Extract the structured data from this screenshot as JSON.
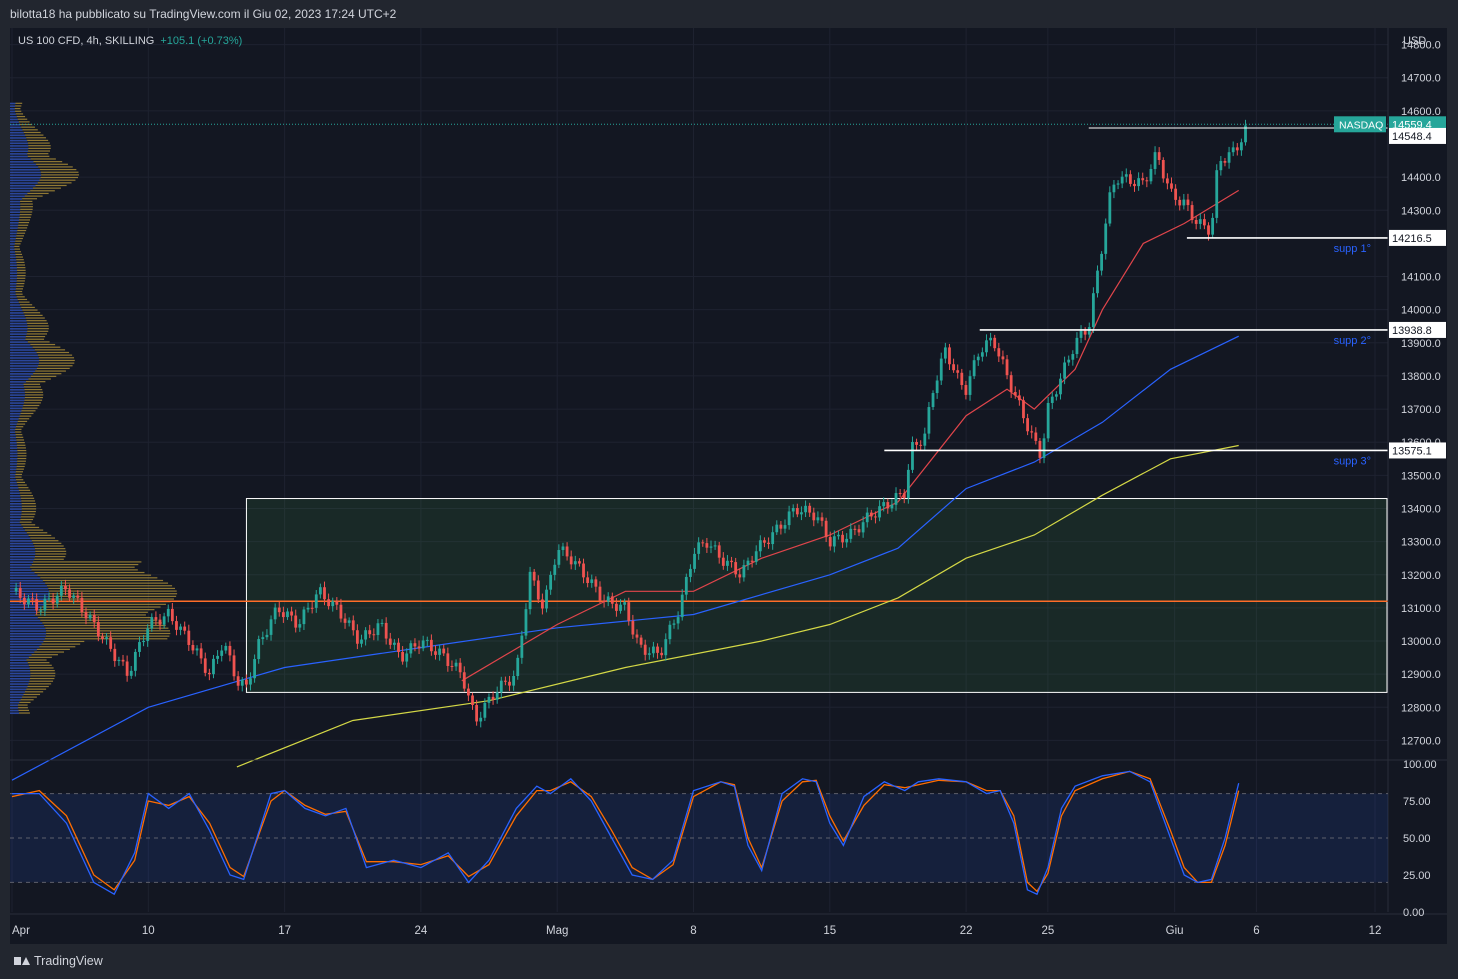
{
  "header": {
    "publish_line": "bilotta18 ha pubblicato su TradingView.com il Giu 02, 2023 17:24 UTC+2"
  },
  "legend": {
    "symbol": "US 100 CFD, 4h, SKILLING",
    "change": "+105.1 (+0.73%)"
  },
  "footer": {
    "brand": "TradingView"
  },
  "colors": {
    "up": "#26a69a",
    "down": "#ef5350",
    "ema_fast": "#e0454b",
    "ema_mid": "#2962ff",
    "ema_slow": "#d4d846",
    "pivot": "#ff6d28",
    "stoch_k": "#2962ff",
    "stoch_d": "#ff6d00"
  },
  "chart_data": {
    "type": "candlestick",
    "currency": "USD",
    "ylim": [
      12650,
      14850
    ],
    "y_ticks": [
      "14800.0",
      "14700.0",
      "14600.0",
      "14400.0",
      "14300.0",
      "14100.0",
      "14000.0",
      "13900.0",
      "13800.0",
      "13700.0",
      "13600.0",
      "13500.0",
      "13400.0",
      "13300.0",
      "13200.0",
      "13100.0",
      "13000.0",
      "12900.0",
      "12800.0",
      "12700.0"
    ],
    "x_ticks": [
      {
        "label": "Apr",
        "pos": 0
      },
      {
        "label": "10",
        "pos": 0.1
      },
      {
        "label": "17",
        "pos": 0.2
      },
      {
        "label": "24",
        "pos": 0.3
      },
      {
        "label": "Mag",
        "pos": 0.4
      },
      {
        "label": "8",
        "pos": 0.5
      },
      {
        "label": "15",
        "pos": 0.6
      },
      {
        "label": "22",
        "pos": 0.7
      },
      {
        "label": "25",
        "pos": 0.76
      },
      {
        "label": "Giu",
        "pos": 0.853
      },
      {
        "label": "6",
        "pos": 0.913
      },
      {
        "label": "12",
        "pos": 1.0
      }
    ],
    "price_labels": [
      {
        "name": "NASDAQ",
        "value": "14559.4",
        "price": 14559.4,
        "style": "current"
      },
      {
        "value": "14548.4",
        "price": 14548.4,
        "style": "level"
      },
      {
        "value": "14216.5",
        "price": 14216.5,
        "style": "level"
      },
      {
        "value": "13938.8",
        "price": 13938.8,
        "style": "level"
      },
      {
        "value": "13575.1",
        "price": 13575.1,
        "style": "level"
      }
    ],
    "supports": [
      {
        "label": "supp 1°",
        "price": 14216.5,
        "x_start": 0.862
      },
      {
        "label": "supp 2°",
        "price": 13938.8,
        "x_start": 0.71
      },
      {
        "label": "supp 3°",
        "price": 13575.1,
        "x_start": 0.64
      }
    ],
    "resistance": {
      "price": 14548.4,
      "x_start": 0.79
    },
    "range_box": {
      "price_top": 13430,
      "price_bottom": 12845,
      "x_start": 0.172
    },
    "pivot_line": 13120,
    "price_path": [
      [
        0,
        13150
      ],
      [
        0.02,
        13100
      ],
      [
        0.04,
        13160
      ],
      [
        0.06,
        13050
      ],
      [
        0.075,
        12960
      ],
      [
        0.085,
        12900
      ],
      [
        0.1,
        13050
      ],
      [
        0.115,
        13080
      ],
      [
        0.13,
        13000
      ],
      [
        0.145,
        12900
      ],
      [
        0.155,
        13000
      ],
      [
        0.165,
        12880
      ],
      [
        0.172,
        12860
      ],
      [
        0.18,
        12980
      ],
      [
        0.195,
        13100
      ],
      [
        0.21,
        13050
      ],
      [
        0.225,
        13150
      ],
      [
        0.24,
        13090
      ],
      [
        0.255,
        13000
      ],
      [
        0.27,
        13050
      ],
      [
        0.285,
        12950
      ],
      [
        0.3,
        13000
      ],
      [
        0.315,
        12960
      ],
      [
        0.33,
        12900
      ],
      [
        0.34,
        12760
      ],
      [
        0.355,
        12850
      ],
      [
        0.37,
        12900
      ],
      [
        0.38,
        13200
      ],
      [
        0.39,
        13100
      ],
      [
        0.4,
        13280
      ],
      [
        0.41,
        13250
      ],
      [
        0.42,
        13200
      ],
      [
        0.435,
        13120
      ],
      [
        0.45,
        13100
      ],
      [
        0.46,
        12980
      ],
      [
        0.475,
        12960
      ],
      [
        0.49,
        13100
      ],
      [
        0.5,
        13270
      ],
      [
        0.51,
        13300
      ],
      [
        0.52,
        13250
      ],
      [
        0.535,
        13200
      ],
      [
        0.545,
        13270
      ],
      [
        0.56,
        13330
      ],
      [
        0.575,
        13400
      ],
      [
        0.59,
        13380
      ],
      [
        0.6,
        13300
      ],
      [
        0.615,
        13320
      ],
      [
        0.63,
        13380
      ],
      [
        0.645,
        13420
      ],
      [
        0.655,
        13450
      ],
      [
        0.66,
        13580
      ],
      [
        0.67,
        13620
      ],
      [
        0.675,
        13750
      ],
      [
        0.685,
        13880
      ],
      [
        0.695,
        13780
      ],
      [
        0.7,
        13760
      ],
      [
        0.71,
        13880
      ],
      [
        0.72,
        13910
      ],
      [
        0.73,
        13800
      ],
      [
        0.74,
        13700
      ],
      [
        0.75,
        13600
      ],
      [
        0.755,
        13560
      ],
      [
        0.76,
        13700
      ],
      [
        0.77,
        13800
      ],
      [
        0.78,
        13900
      ],
      [
        0.79,
        13950
      ],
      [
        0.8,
        14200
      ],
      [
        0.805,
        14330
      ],
      [
        0.81,
        14400
      ],
      [
        0.83,
        14380
      ],
      [
        0.84,
        14470
      ],
      [
        0.85,
        14350
      ],
      [
        0.86,
        14320
      ],
      [
        0.87,
        14260
      ],
      [
        0.88,
        14240
      ],
      [
        0.885,
        14450
      ],
      [
        0.895,
        14470
      ],
      [
        0.9,
        14500
      ],
      [
        0.905,
        14540
      ]
    ],
    "ema_fast": [
      [
        0.33,
        12880
      ],
      [
        0.4,
        13050
      ],
      [
        0.45,
        13150
      ],
      [
        0.5,
        13150
      ],
      [
        0.55,
        13250
      ],
      [
        0.6,
        13320
      ],
      [
        0.65,
        13420
      ],
      [
        0.7,
        13680
      ],
      [
        0.73,
        13760
      ],
      [
        0.75,
        13700
      ],
      [
        0.78,
        13820
      ],
      [
        0.8,
        14000
      ],
      [
        0.83,
        14200
      ],
      [
        0.86,
        14260
      ],
      [
        0.9,
        14360
      ]
    ],
    "ema_mid": [
      [
        0,
        12580
      ],
      [
        0.1,
        12800
      ],
      [
        0.2,
        12920
      ],
      [
        0.3,
        12980
      ],
      [
        0.4,
        13040
      ],
      [
        0.5,
        13080
      ],
      [
        0.6,
        13200
      ],
      [
        0.65,
        13280
      ],
      [
        0.7,
        13460
      ],
      [
        0.75,
        13540
      ],
      [
        0.8,
        13660
      ],
      [
        0.85,
        13820
      ],
      [
        0.9,
        13920
      ]
    ],
    "ema_slow": [
      [
        0.165,
        12620
      ],
      [
        0.25,
        12760
      ],
      [
        0.35,
        12820
      ],
      [
        0.45,
        12920
      ],
      [
        0.55,
        13000
      ],
      [
        0.6,
        13050
      ],
      [
        0.65,
        13130
      ],
      [
        0.7,
        13250
      ],
      [
        0.75,
        13320
      ],
      [
        0.8,
        13440
      ],
      [
        0.85,
        13550
      ],
      [
        0.9,
        13590
      ]
    ],
    "oscillator": {
      "ylim": [
        0,
        100
      ],
      "ticks": [
        "100.00",
        "75.00",
        "50.00",
        "25.00",
        "0.00"
      ],
      "band": [
        20,
        80
      ],
      "k": [
        [
          0,
          80
        ],
        [
          0.02,
          80
        ],
        [
          0.04,
          60
        ],
        [
          0.06,
          20
        ],
        [
          0.075,
          12
        ],
        [
          0.09,
          40
        ],
        [
          0.1,
          80
        ],
        [
          0.115,
          70
        ],
        [
          0.13,
          80
        ],
        [
          0.145,
          55
        ],
        [
          0.16,
          25
        ],
        [
          0.17,
          22
        ],
        [
          0.19,
          80
        ],
        [
          0.2,
          82
        ],
        [
          0.215,
          70
        ],
        [
          0.23,
          65
        ],
        [
          0.245,
          70
        ],
        [
          0.26,
          30
        ],
        [
          0.28,
          35
        ],
        [
          0.3,
          30
        ],
        [
          0.32,
          40
        ],
        [
          0.335,
          20
        ],
        [
          0.35,
          35
        ],
        [
          0.37,
          70
        ],
        [
          0.385,
          85
        ],
        [
          0.395,
          80
        ],
        [
          0.41,
          90
        ],
        [
          0.425,
          75
        ],
        [
          0.44,
          50
        ],
        [
          0.455,
          25
        ],
        [
          0.47,
          22
        ],
        [
          0.485,
          35
        ],
        [
          0.5,
          82
        ],
        [
          0.52,
          88
        ],
        [
          0.53,
          85
        ],
        [
          0.54,
          45
        ],
        [
          0.55,
          28
        ],
        [
          0.565,
          80
        ],
        [
          0.58,
          90
        ],
        [
          0.59,
          88
        ],
        [
          0.6,
          60
        ],
        [
          0.61,
          45
        ],
        [
          0.625,
          78
        ],
        [
          0.64,
          88
        ],
        [
          0.655,
          82
        ],
        [
          0.665,
          88
        ],
        [
          0.68,
          90
        ],
        [
          0.7,
          88
        ],
        [
          0.715,
          80
        ],
        [
          0.725,
          82
        ],
        [
          0.735,
          60
        ],
        [
          0.745,
          15
        ],
        [
          0.752,
          12
        ],
        [
          0.76,
          30
        ],
        [
          0.77,
          70
        ],
        [
          0.78,
          85
        ],
        [
          0.8,
          92
        ],
        [
          0.82,
          95
        ],
        [
          0.835,
          88
        ],
        [
          0.85,
          50
        ],
        [
          0.86,
          25
        ],
        [
          0.87,
          20
        ],
        [
          0.88,
          22
        ],
        [
          0.89,
          50
        ],
        [
          0.9,
          87
        ]
      ],
      "d": [
        [
          0,
          78
        ],
        [
          0.02,
          82
        ],
        [
          0.04,
          65
        ],
        [
          0.06,
          25
        ],
        [
          0.075,
          15
        ],
        [
          0.09,
          35
        ],
        [
          0.1,
          75
        ],
        [
          0.115,
          72
        ],
        [
          0.13,
          78
        ],
        [
          0.145,
          60
        ],
        [
          0.16,
          30
        ],
        [
          0.17,
          24
        ],
        [
          0.19,
          75
        ],
        [
          0.2,
          82
        ],
        [
          0.215,
          72
        ],
        [
          0.23,
          66
        ],
        [
          0.245,
          68
        ],
        [
          0.26,
          34
        ],
        [
          0.28,
          34
        ],
        [
          0.3,
          32
        ],
        [
          0.32,
          38
        ],
        [
          0.335,
          24
        ],
        [
          0.35,
          32
        ],
        [
          0.37,
          65
        ],
        [
          0.385,
          82
        ],
        [
          0.395,
          82
        ],
        [
          0.41,
          88
        ],
        [
          0.425,
          78
        ],
        [
          0.44,
          55
        ],
        [
          0.455,
          30
        ],
        [
          0.47,
          22
        ],
        [
          0.485,
          32
        ],
        [
          0.5,
          78
        ],
        [
          0.52,
          88
        ],
        [
          0.53,
          86
        ],
        [
          0.54,
          50
        ],
        [
          0.55,
          30
        ],
        [
          0.565,
          75
        ],
        [
          0.58,
          88
        ],
        [
          0.59,
          89
        ],
        [
          0.6,
          65
        ],
        [
          0.61,
          48
        ],
        [
          0.625,
          72
        ],
        [
          0.64,
          86
        ],
        [
          0.655,
          84
        ],
        [
          0.665,
          86
        ],
        [
          0.68,
          89
        ],
        [
          0.7,
          88
        ],
        [
          0.715,
          82
        ],
        [
          0.725,
          82
        ],
        [
          0.735,
          65
        ],
        [
          0.745,
          20
        ],
        [
          0.752,
          14
        ],
        [
          0.76,
          26
        ],
        [
          0.77,
          65
        ],
        [
          0.78,
          82
        ],
        [
          0.8,
          90
        ],
        [
          0.82,
          95
        ],
        [
          0.835,
          90
        ],
        [
          0.85,
          55
        ],
        [
          0.86,
          30
        ],
        [
          0.87,
          20
        ],
        [
          0.88,
          20
        ],
        [
          0.89,
          45
        ],
        [
          0.9,
          82
        ]
      ]
    }
  }
}
